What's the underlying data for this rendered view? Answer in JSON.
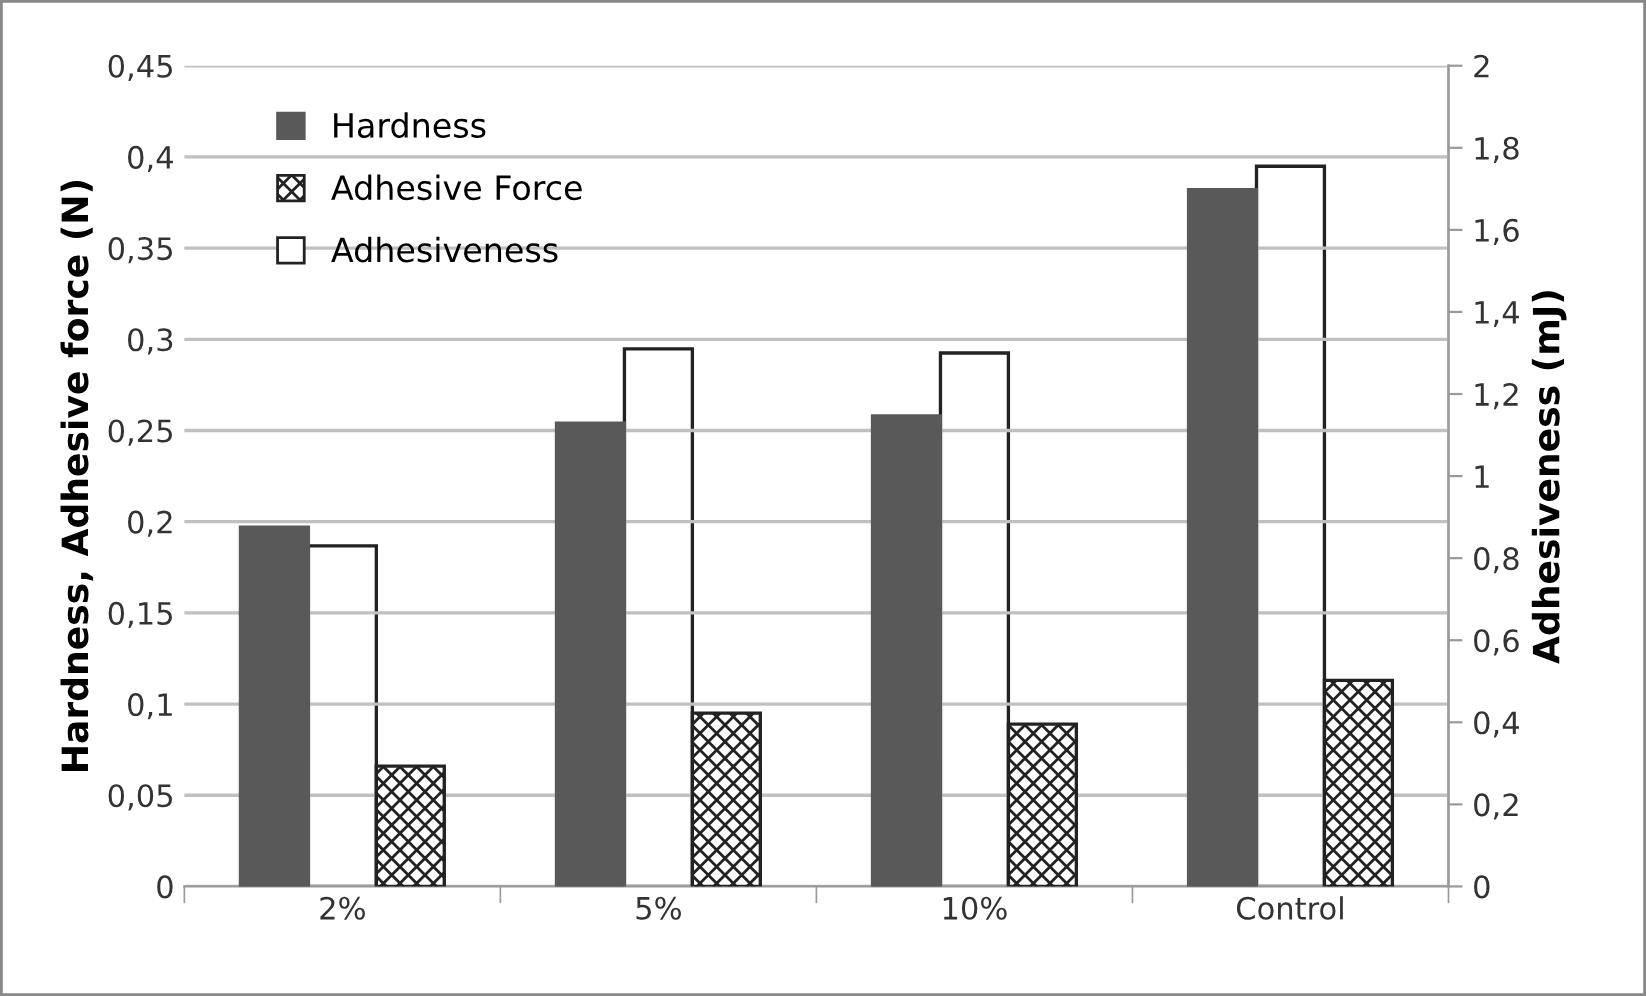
{
  "chart_data": {
    "type": "bar",
    "categories": [
      "2%",
      "5%",
      "10%",
      "Control"
    ],
    "ylabel": "Hardness, Adhesive force (N)",
    "y2label": "Adhesiveness (mJ)",
    "series": [
      {
        "name": "Hardness",
        "color": "#595959",
        "values": [
          0.197,
          0.254,
          0.258,
          0.382
        ]
      },
      {
        "name": "Adhesive Force",
        "color": "#222222",
        "values": [
          0.066,
          0.095,
          0.089,
          0.113
        ]
      },
      {
        "name": "Adhesiveness",
        "color": "#ffffff",
        "axis": "y2",
        "values": [
          0.83,
          1.31,
          1.3,
          1.755
        ]
      }
    ],
    "ylim": [
      0,
      0.45
    ],
    "yticks": [
      0,
      {
        "value": 0.05,
        "label": "0,05"
      },
      {
        "value": 0.1,
        "label": "0,1"
      },
      {
        "value": 0.15,
        "label": "0,15"
      },
      {
        "value": 0.2,
        "label": "0,2"
      },
      {
        "value": 0.25,
        "label": "0,25"
      },
      {
        "value": 0.3,
        "label": "0,3"
      },
      {
        "value": 0.35,
        "label": "0,35"
      },
      {
        "value": 0.4,
        "label": "0,4"
      },
      {
        "value": 0.45,
        "label": "0,45"
      }
    ],
    "y2lim": [
      0,
      2
    ],
    "y2ticks": [
      0,
      {
        "value": 0.2,
        "label": "0,2"
      },
      {
        "value": 0.4,
        "label": "0,4"
      },
      {
        "value": 0.6,
        "label": "0,6"
      },
      {
        "value": 0.8,
        "label": "0,8"
      },
      1,
      {
        "value": 1.2,
        "label": "1,2"
      },
      {
        "value": 1.4,
        "label": "1,4"
      },
      {
        "value": 1.6,
        "label": "1,6"
      },
      {
        "value": 1.8,
        "label": "1,8"
      },
      2
    ],
    "grid": "y",
    "legend": "top left"
  }
}
